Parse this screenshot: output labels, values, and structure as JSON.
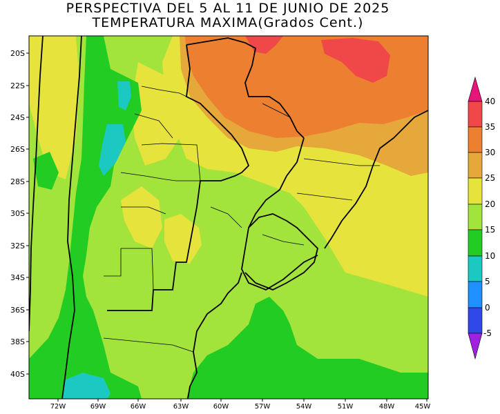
{
  "title": {
    "line1": "PERSPECTIVA DEL 5 AL 11 DE JUNIO DE 2025",
    "line2": "TEMPERATURA MAXIMA(Grados Cent.)"
  },
  "map": {
    "lat_labels": [
      "20S",
      "22S",
      "24S",
      "26S",
      "28S",
      "30S",
      "32S",
      "34S",
      "36S",
      "38S",
      "40S"
    ],
    "lon_labels": [
      "72W",
      "69W",
      "66W",
      "63W",
      "60W",
      "57W",
      "54W",
      "51W",
      "48W",
      "45W"
    ]
  },
  "legend": {
    "ticks": [
      "40",
      "35",
      "30",
      "25",
      "20",
      "15",
      "10",
      "5",
      "0",
      "-5"
    ],
    "colors": {
      "c40": "#e8157a",
      "c35": "#f04848",
      "c30": "#ec8030",
      "c25": "#e6a83a",
      "c20": "#e5e33c",
      "c15": "#a2e33c",
      "c10": "#22cc22",
      "c5": "#1cc9c2",
      "c0": "#1e90ff",
      "cm5": "#3048e8",
      "cmin": "#a020e0"
    }
  }
}
